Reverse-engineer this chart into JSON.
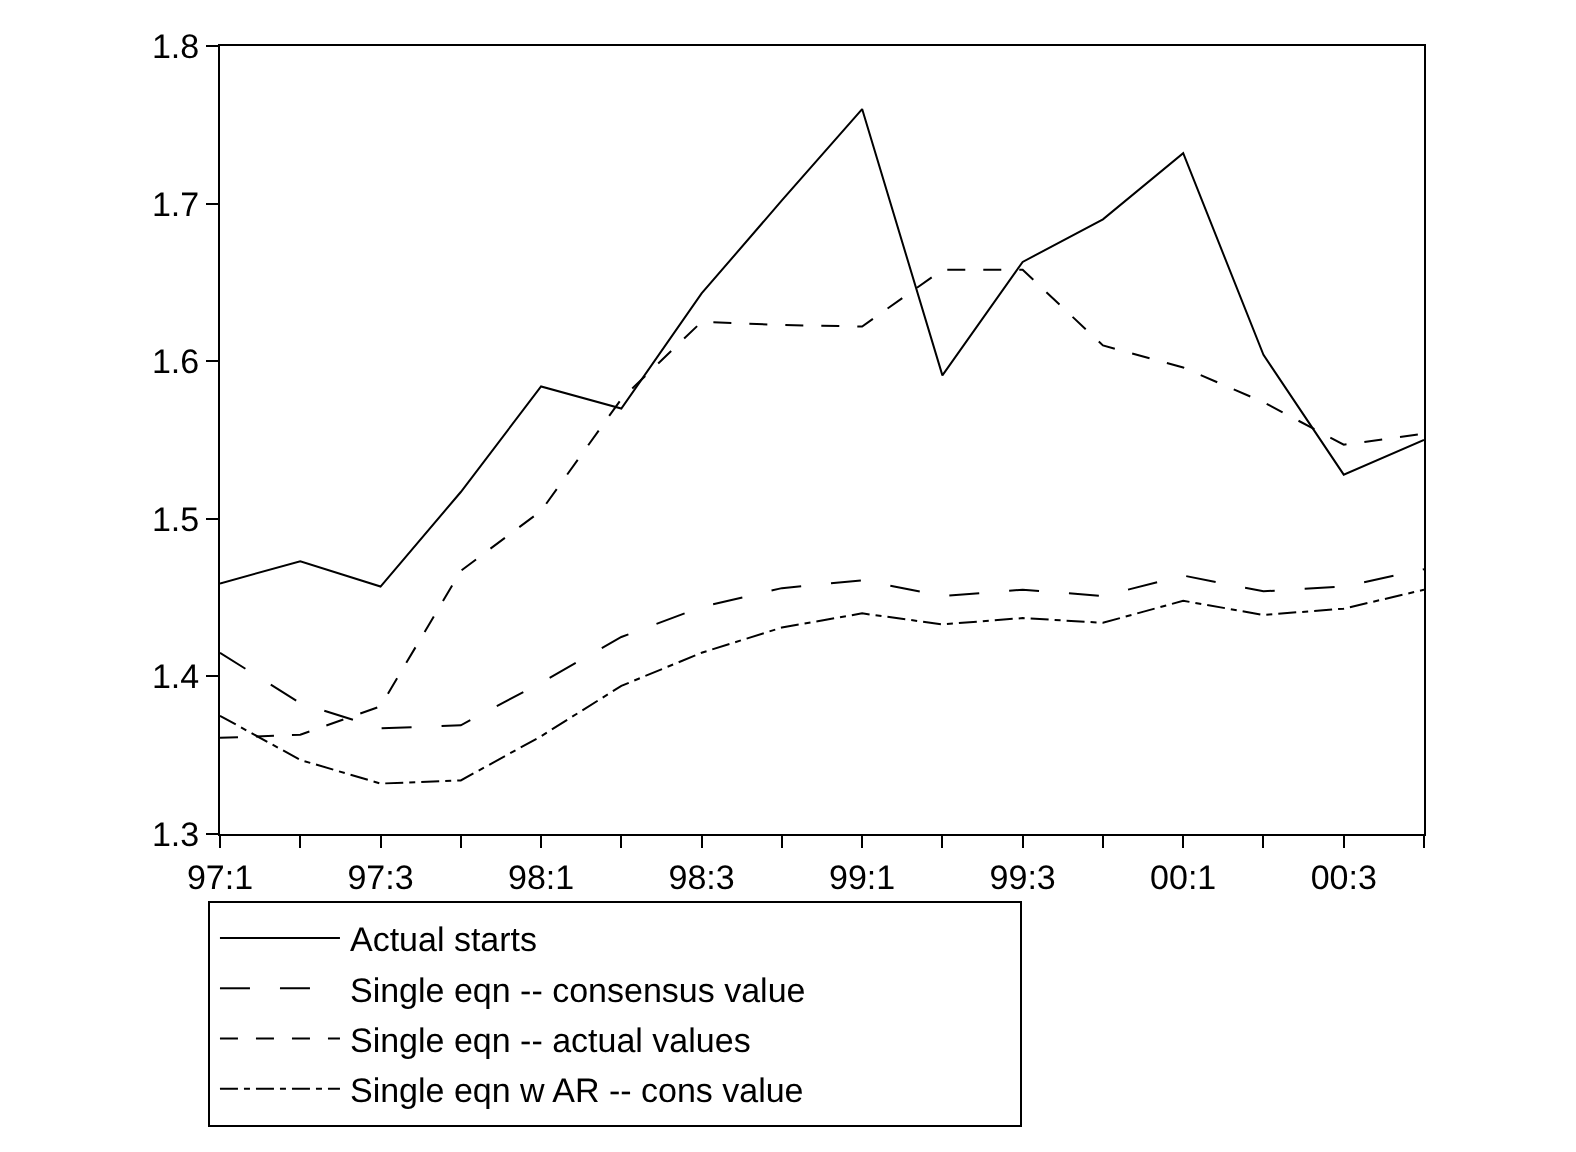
{
  "chart_data": {
    "type": "line",
    "categories": [
      "97:1",
      null,
      "97:3",
      null,
      "98:1",
      null,
      "98:3",
      null,
      "99:1",
      null,
      "99:3",
      null,
      "00:1",
      null,
      "00:3",
      null
    ],
    "series": [
      {
        "name": "Actual starts",
        "color": "#000000",
        "line_style": "solid",
        "values": [
          1.459,
          1.473,
          1.457,
          1.517,
          1.584,
          1.57,
          1.643,
          1.702,
          1.76,
          1.591,
          1.663,
          1.69,
          1.732,
          1.604,
          1.528,
          1.55
        ]
      },
      {
        "name": "Single eqn -- consensus value",
        "color": "#000000",
        "line_style": "longdash",
        "values": [
          1.415,
          1.383,
          1.367,
          1.369,
          1.396,
          1.425,
          1.444,
          1.456,
          1.461,
          1.451,
          1.455,
          1.451,
          1.464,
          1.454,
          1.457,
          1.468
        ]
      },
      {
        "name": "Single eqn -- actual values",
        "color": "#000000",
        "line_style": "dashed",
        "values": [
          1.361,
          1.363,
          1.381,
          1.467,
          1.505,
          1.576,
          1.625,
          1.623,
          1.622,
          1.658,
          1.658,
          1.61,
          1.596,
          1.574,
          1.547,
          1.554
        ]
      },
      {
        "name": "Single eqn w AR -- cons value",
        "color": "#000000",
        "line_style": "dashdot",
        "values": [
          1.375,
          1.347,
          1.332,
          1.334,
          1.362,
          1.394,
          1.415,
          1.431,
          1.44,
          1.433,
          1.437,
          1.434,
          1.448,
          1.439,
          1.443,
          1.455
        ]
      }
    ],
    "ylim": [
      1.3,
      1.8
    ],
    "yticks": [
      1.3,
      1.4,
      1.5,
      1.6,
      1.7,
      1.8
    ],
    "grid": false,
    "legend": "bottom",
    "marker": "none"
  }
}
